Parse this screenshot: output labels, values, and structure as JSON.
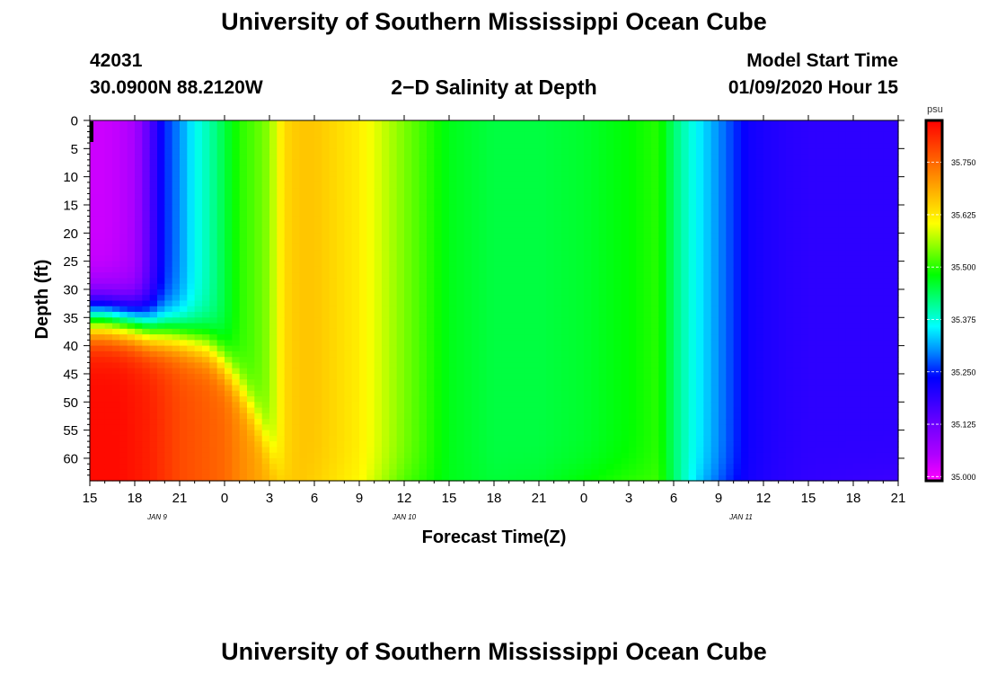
{
  "header": {
    "title_top": "University of Southern Mississippi Ocean Cube",
    "station_id": "42031",
    "station_coords": "30.0900N 88.2120W",
    "model_start_label": "Model Start Time",
    "model_start_value": "01/09/2020 Hour 15",
    "title_bottom": "University of Southern Mississippi Ocean Cube"
  },
  "chart_data": {
    "type": "heatmap",
    "title": "2−D Salinity at Depth",
    "xlabel": "Forecast Time(Z)",
    "ylabel": "Depth (ft)",
    "x_ticks": [
      "15",
      "18",
      "21",
      "0",
      "3",
      "6",
      "9",
      "12",
      "15",
      "18",
      "21",
      "0",
      "3",
      "6",
      "9",
      "12",
      "15",
      "18",
      "21"
    ],
    "x_range_hours": [
      0,
      54
    ],
    "date_labels": [
      {
        "text": "JAN  9",
        "hour": 4.5
      },
      {
        "text": "JAN  10",
        "hour": 21
      },
      {
        "text": "JAN  11",
        "hour": 43.5
      }
    ],
    "y_ticks": [
      0,
      5,
      10,
      15,
      20,
      25,
      30,
      35,
      40,
      45,
      50,
      55,
      60
    ],
    "y_range": [
      0,
      64
    ],
    "colorbar": {
      "unit": "psu",
      "ticks": [
        "35.750",
        "35.625",
        "35.500",
        "35.375",
        "35.250",
        "35.125",
        "35.000"
      ],
      "range": [
        34.99,
        35.85
      ],
      "colors": [
        "#ff00ff",
        "#b000ff",
        "#7a00ff",
        "#3c00ff",
        "#0000ff",
        "#0088ff",
        "#00ffff",
        "#00ff80",
        "#00ff00",
        "#80ff00",
        "#ffff00",
        "#ffc000",
        "#ff8000",
        "#ff4000",
        "#ff0000"
      ]
    },
    "profile_hours": [
      0,
      1,
      2,
      3,
      4,
      5,
      6,
      7,
      8,
      9,
      10,
      11,
      12,
      13,
      14,
      15,
      18,
      21,
      24,
      27,
      30,
      33,
      36,
      38,
      39,
      40,
      41,
      42,
      43,
      44,
      46,
      48,
      51,
      54
    ],
    "surface_salinity": [
      35.03,
      35.03,
      35.04,
      35.06,
      35.15,
      35.25,
      35.3,
      35.36,
      35.4,
      35.45,
      35.5,
      35.52,
      35.55,
      35.64,
      35.66,
      35.66,
      35.62,
      35.54,
      35.47,
      35.45,
      35.45,
      35.46,
      35.48,
      35.5,
      35.43,
      35.38,
      35.34,
      35.3,
      35.26,
      35.22,
      35.2,
      35.19,
      35.19,
      35.19
    ],
    "bottom_salinity": [
      35.84,
      35.84,
      35.84,
      35.83,
      35.82,
      35.8,
      35.78,
      35.77,
      35.76,
      35.75,
      35.72,
      35.7,
      35.68,
      35.66,
      35.66,
      35.64,
      35.6,
      35.5,
      35.47,
      35.46,
      35.47,
      35.5,
      35.52,
      35.52,
      35.44,
      35.36,
      35.3,
      35.26,
      35.23,
      35.21,
      35.19,
      35.18,
      35.17,
      35.16
    ],
    "mixed_layer_depth_ft": [
      35,
      35,
      35.5,
      36,
      37,
      37.5,
      38,
      39,
      40,
      43,
      47,
      52,
      58,
      64,
      64,
      64,
      64,
      64,
      64,
      64,
      64,
      64,
      64,
      64,
      64,
      64,
      64,
      64,
      64,
      64,
      64,
      64,
      64,
      64
    ]
  }
}
